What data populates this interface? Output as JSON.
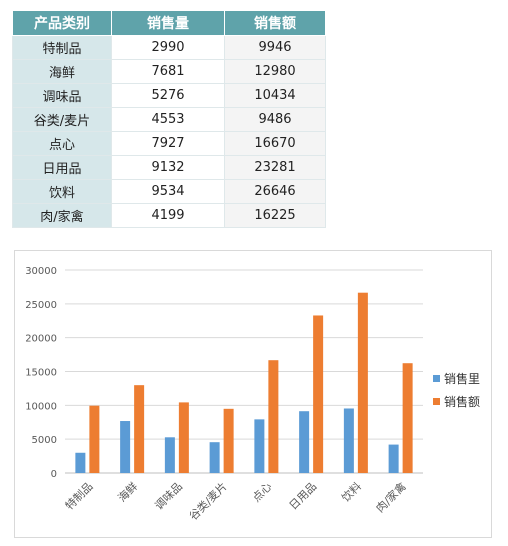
{
  "table": {
    "headers": [
      "产品类别",
      "销售量",
      "销售额"
    ],
    "rows": [
      [
        "特制品",
        "2990",
        "9946"
      ],
      [
        "海鲜",
        "7681",
        "12980"
      ],
      [
        "调味品",
        "5276",
        "10434"
      ],
      [
        "谷类/麦片",
        "4553",
        "9486"
      ],
      [
        "点心",
        "7927",
        "16670"
      ],
      [
        "日用品",
        "9132",
        "23281"
      ],
      [
        "饮料",
        "9534",
        "26646"
      ],
      [
        "肉/家禽",
        "4199",
        "16225"
      ]
    ]
  },
  "chart_data": {
    "type": "bar",
    "categories": [
      "特制品",
      "海鲜",
      "调味品",
      "谷类/麦片",
      "点心",
      "日用品",
      "饮料",
      "肉/家禽"
    ],
    "series": [
      {
        "name": "销售里",
        "values": [
          2990,
          7681,
          5276,
          4553,
          7927,
          9132,
          9534,
          4199
        ],
        "color": "#5b9bd5"
      },
      {
        "name": "销售额",
        "values": [
          9946,
          12980,
          10434,
          9486,
          16670,
          23281,
          26646,
          16225
        ],
        "color": "#ed7d31"
      }
    ],
    "ylim": [
      0,
      30000
    ],
    "yticks": [
      0,
      5000,
      10000,
      15000,
      20000,
      25000,
      30000
    ],
    "grid": true,
    "legend_position": "right",
    "title": "",
    "xlabel": "",
    "ylabel": ""
  }
}
